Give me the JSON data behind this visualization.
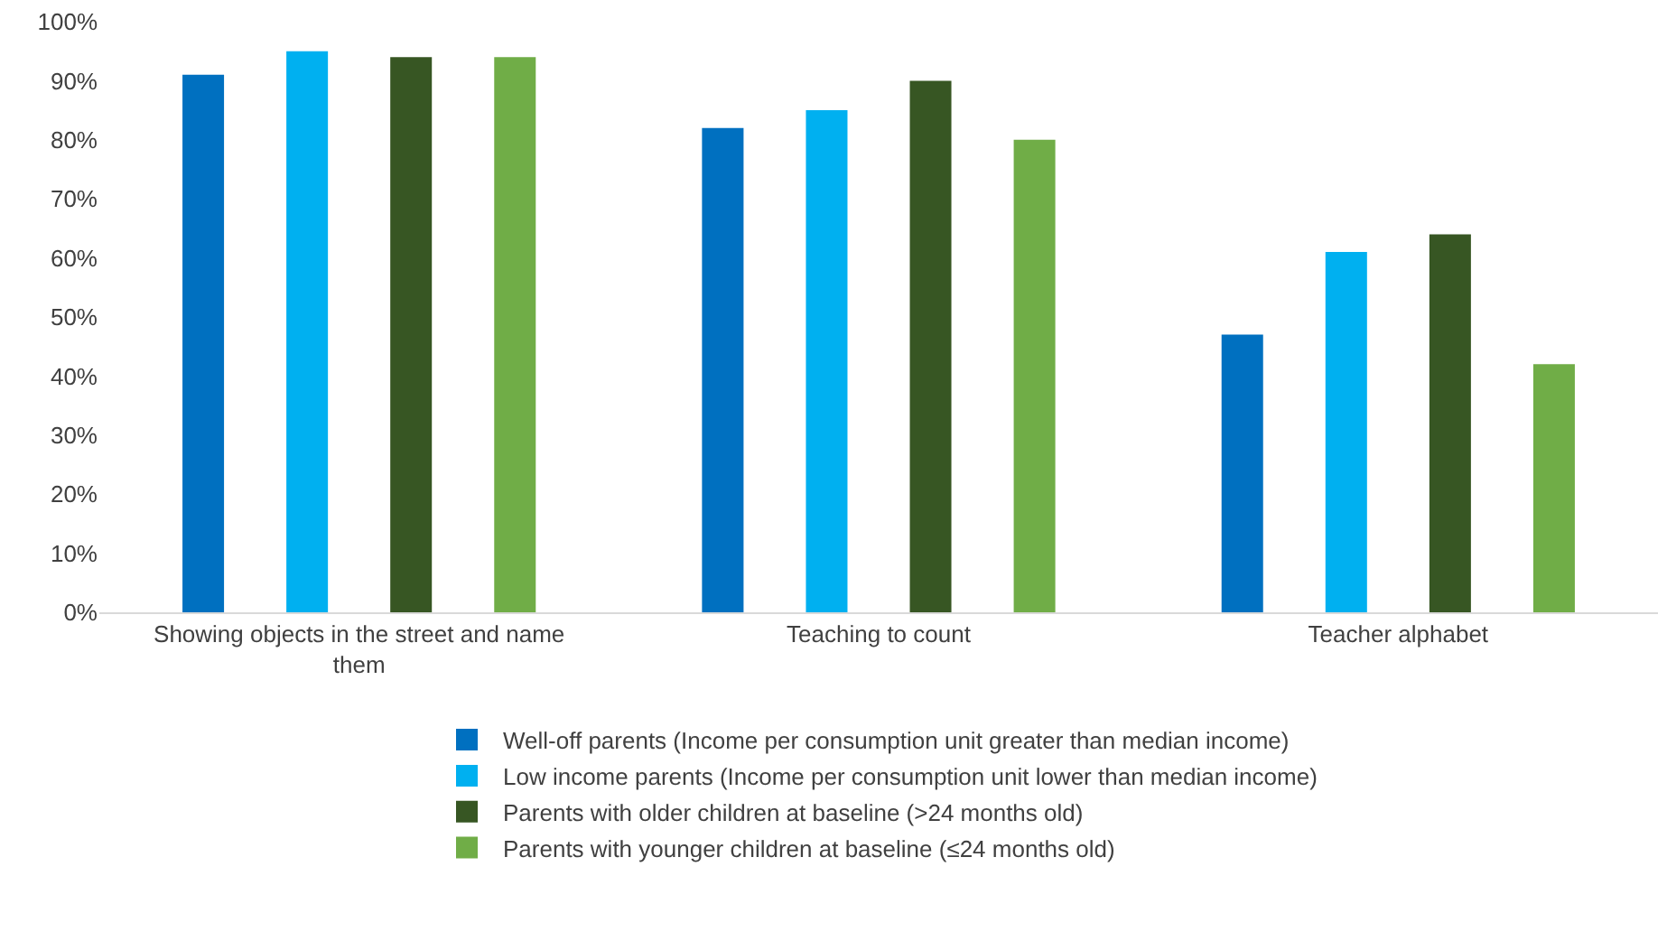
{
  "chart_data": {
    "type": "bar",
    "categories": [
      "Showing objects in the street and name them",
      "Teaching to count",
      "Teacher alphabet"
    ],
    "series": [
      {
        "name": "Well-off parents (Income per consumption unit greater than median income)",
        "color": "#0070c0",
        "values": [
          91,
          82,
          47
        ]
      },
      {
        "name": "Low income parents (Income per consumption unit lower than median income)",
        "color": "#00b0f0",
        "values": [
          95,
          85,
          61
        ]
      },
      {
        "name": "Parents with older children at baseline (>24 months old)",
        "color": "#375623",
        "values": [
          94,
          90,
          64
        ]
      },
      {
        "name": "Parents with younger children at baseline (≤24 months old)",
        "color": "#70ad47",
        "values": [
          94,
          80,
          42
        ]
      }
    ],
    "ylim": [
      0,
      100
    ],
    "yticks": [
      {
        "value": 0,
        "label": "0%"
      },
      {
        "value": 10,
        "label": "10%"
      },
      {
        "value": 20,
        "label": "20%"
      },
      {
        "value": 30,
        "label": "30%"
      },
      {
        "value": 40,
        "label": "40%"
      },
      {
        "value": 50,
        "label": "50%"
      },
      {
        "value": 60,
        "label": "60%"
      },
      {
        "value": 70,
        "label": "70%"
      },
      {
        "value": 80,
        "label": "80%"
      },
      {
        "value": 90,
        "label": "90%"
      },
      {
        "value": 100,
        "label": "100%"
      }
    ],
    "grid": false,
    "legend": "bottom"
  }
}
